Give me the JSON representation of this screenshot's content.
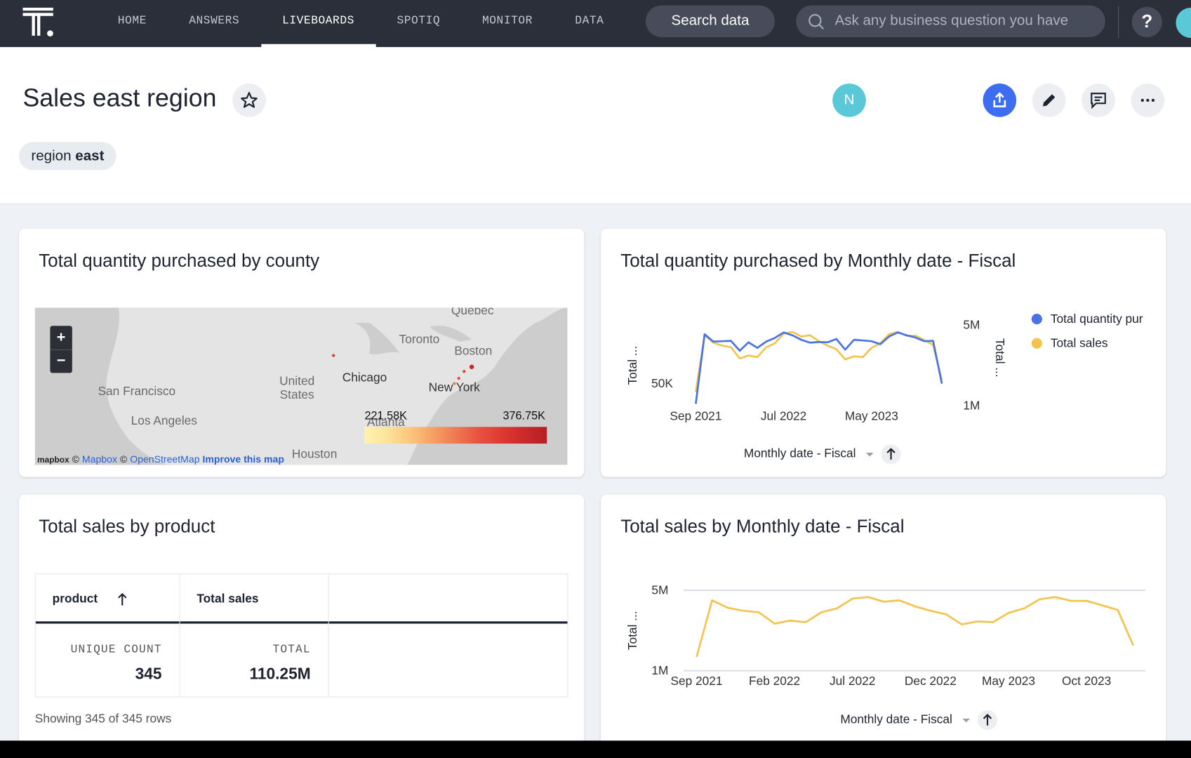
{
  "nav": {
    "items": [
      "HOME",
      "ANSWERS",
      "LIVEBOARDS",
      "SPOTIQ",
      "MONITOR",
      "DATA"
    ],
    "search_button": "Search data",
    "search_placeholder": "Ask any business question you have",
    "help": "?"
  },
  "header": {
    "title": "Sales east region",
    "avatar": "N",
    "filter_label": "region",
    "filter_value": "east"
  },
  "map_card": {
    "title": "Total quantity purchased by county",
    "zoom": [
      "+",
      "−"
    ],
    "places": [
      "Quebec",
      "Toronto",
      "Boston",
      "Chicago",
      "United States",
      "San Francisco",
      "Los Angeles",
      "New York",
      "Atlanta",
      "Houston"
    ],
    "legend_min": "221.58K",
    "legend_max": "376.75K",
    "logo": "mapbox",
    "attribution": [
      "©",
      "Mapbox",
      "©",
      "OpenStreetMap",
      "Improve this map"
    ]
  },
  "table_card": {
    "title": "Total sales by product",
    "columns": [
      "product",
      "Total sales"
    ],
    "summary": [
      {
        "label": "UNIQUE COUNT",
        "value": "345"
      },
      {
        "label": "TOTAL",
        "value": "110.25M"
      }
    ],
    "footer": "Showing 345 of 345 rows"
  },
  "chart_data": [
    {
      "type": "line",
      "title": "Total quantity purchased by Monthly date - Fiscal",
      "x_label": "Monthly date - Fiscal",
      "y_label": "Total ...",
      "y2_label": "Total ...",
      "categories": [
        "Sep 2021",
        null,
        null,
        null,
        null,
        null,
        null,
        null,
        null,
        null,
        "Jul 2022",
        null,
        null,
        null,
        null,
        null,
        null,
        null,
        null,
        null,
        "May 2023",
        null,
        null,
        null,
        null,
        null,
        null,
        null,
        null
      ],
      "series": [
        {
          "name": "Total quantity pur",
          "color": "#4a74e6",
          "values": [
            44500,
            63500,
            61500,
            61600,
            61700,
            59000,
            61300,
            59800,
            61500,
            62500,
            64000,
            63200,
            62000,
            61200,
            61400,
            61300,
            62200,
            59300,
            62000,
            61800,
            61600,
            60800,
            62900,
            64000,
            63200,
            62600,
            61600,
            61700,
            50000
          ]
        },
        {
          "name": "Total sales",
          "color": "#f2c44f",
          "axis": "y2",
          "values": [
            1680000,
            4500000,
            4130000,
            3980000,
            3900000,
            3340000,
            3490000,
            3410000,
            3900000,
            4100000,
            4580000,
            4660000,
            4430000,
            4500000,
            4200000,
            3980000,
            3800000,
            3300000,
            3450000,
            3410000,
            3870000,
            4100000,
            4550000,
            4660000,
            4470000,
            4470000,
            4250000,
            4020000,
            2250000
          ]
        }
      ],
      "ylim": [
        44000,
        66000
      ],
      "yticks": [
        {
          "value": 50000,
          "label": "50K"
        }
      ],
      "y2lim": [
        1000000,
        5000000
      ],
      "y2ticks": [
        {
          "value": 1000000,
          "label": "1M"
        },
        {
          "value": 5000000,
          "label": "5M"
        }
      ],
      "legend": "right"
    },
    {
      "type": "line",
      "title": "Total sales by Monthly date - Fiscal",
      "x_label": "Monthly date - Fiscal",
      "y_label": "Total ...",
      "categories": [
        "Sep 2021",
        null,
        null,
        null,
        null,
        "Feb 2022",
        null,
        null,
        null,
        null,
        "Jul 2022",
        null,
        null,
        null,
        null,
        "Dec 2022",
        null,
        null,
        null,
        null,
        "May 2023",
        null,
        null,
        null,
        null,
        "Oct 2023",
        null,
        null,
        null
      ],
      "color": "#f2c44f",
      "values": [
        1680000,
        4500000,
        4130000,
        3980000,
        3900000,
        3340000,
        3490000,
        3410000,
        3900000,
        4100000,
        4580000,
        4660000,
        4430000,
        4500000,
        4200000,
        3980000,
        3800000,
        3300000,
        3450000,
        3410000,
        3870000,
        4100000,
        4550000,
        4660000,
        4470000,
        4470000,
        4250000,
        4020000,
        2250000
      ],
      "ylim": [
        1000000,
        5000000
      ],
      "yticks": [
        {
          "value": 1000000,
          "label": "1M"
        },
        {
          "value": 5000000,
          "label": "5M"
        }
      ],
      "grid": true
    }
  ]
}
